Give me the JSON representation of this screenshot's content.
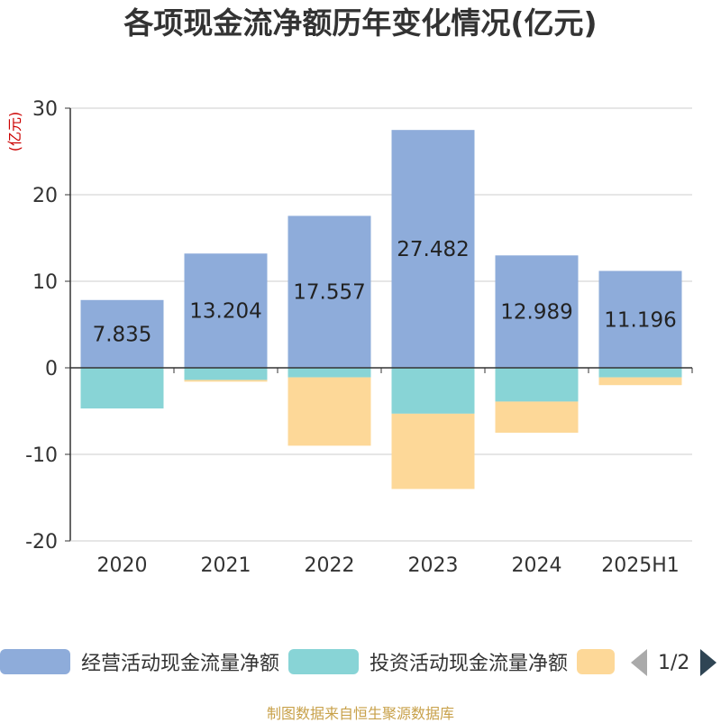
{
  "title": "各项现金流净额历年变化情况(亿元)",
  "unit_label": "(亿元)",
  "source": "制图数据来自恒生聚源数据库",
  "legend": {
    "page_text": "1/2"
  },
  "colors": {
    "operating": "#8eacda",
    "investing": "#88d4d6",
    "financing": "#fdd898",
    "unit": "#cc0000",
    "grid": "#cccccc",
    "axis": "#333333"
  },
  "chart_data": {
    "type": "bar",
    "stacked": true,
    "categories": [
      "2020",
      "2021",
      "2022",
      "2023",
      "2024",
      "2025H1"
    ],
    "ylim": [
      -20,
      30
    ],
    "yticks": [
      -20,
      -10,
      0,
      10,
      20,
      30
    ],
    "grid": true,
    "legend_position": "bottom",
    "series": [
      {
        "name": "经营活动现金流量净额",
        "values": [
          7.835,
          13.204,
          17.557,
          27.482,
          12.989,
          11.196
        ],
        "labels": [
          "7.835",
          "13.204",
          "17.557",
          "27.482",
          "12.989",
          "11.196"
        ]
      },
      {
        "name": "投资活动现金流量净额",
        "values": [
          -4.7,
          -1.4,
          -1.1,
          -5.3,
          -3.9,
          -1.1
        ]
      },
      {
        "name": "",
        "values": [
          0,
          -0.2,
          -7.9,
          -8.7,
          -3.6,
          -0.9
        ]
      }
    ]
  }
}
